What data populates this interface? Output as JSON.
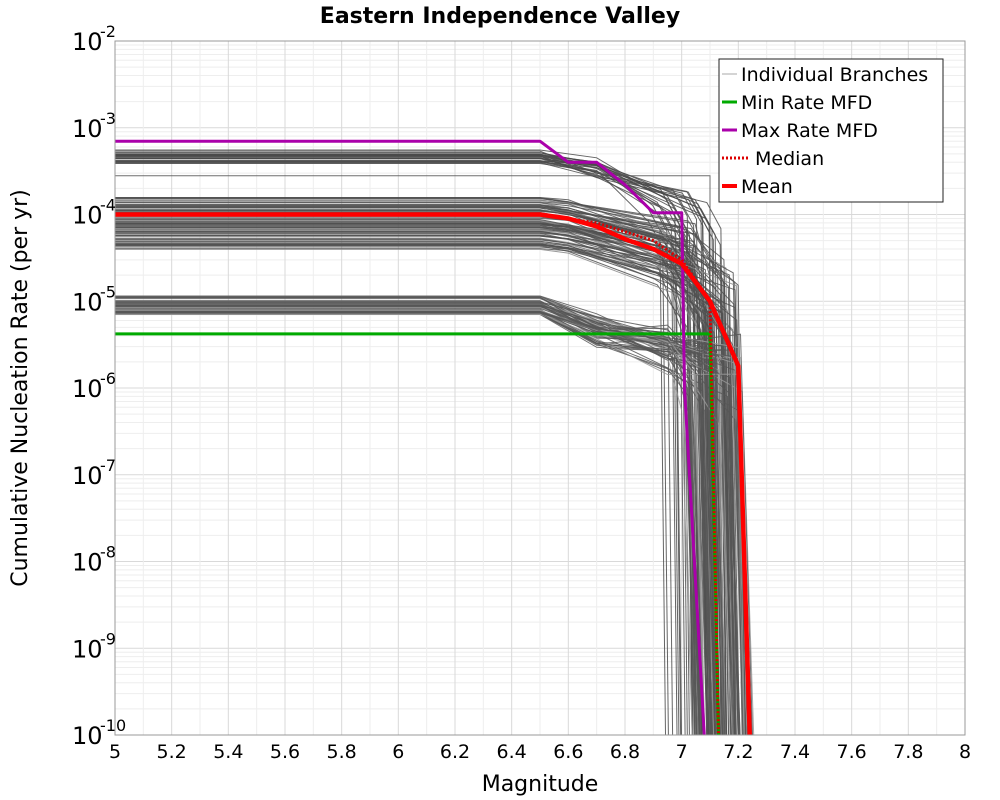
{
  "chart_data": {
    "type": "line",
    "title": "Eastern Independence Valley",
    "xlabel": "Magnitude",
    "ylabel": "Cumulative Nucleation Rate (per yr)",
    "xlim": [
      5,
      8
    ],
    "ylim": [
      1e-10,
      0.01
    ],
    "y_scale": "log",
    "grid": true,
    "legend_position": "top-right",
    "x_ticks": [
      "5",
      "5.2",
      "5.4",
      "5.6",
      "5.8",
      "6",
      "6.2",
      "6.4",
      "6.6",
      "6.8",
      "7",
      "7.2",
      "7.4",
      "7.6",
      "7.8",
      "8"
    ],
    "y_ticks": [
      {
        "base": "10",
        "exp": "-2"
      },
      {
        "base": "10",
        "exp": "-3"
      },
      {
        "base": "10",
        "exp": "-4"
      },
      {
        "base": "10",
        "exp": "-5"
      },
      {
        "base": "10",
        "exp": "-6"
      },
      {
        "base": "10",
        "exp": "-7"
      },
      {
        "base": "10",
        "exp": "-8"
      },
      {
        "base": "10",
        "exp": "-9"
      },
      {
        "base": "10",
        "exp": "-10"
      }
    ],
    "series": [
      {
        "name": "Individual Branches",
        "color": "#555555",
        "style": "thin",
        "note_groups": [
          {
            "level_range": [
              0.00035,
              0.00055
            ],
            "plateau_to": 6.5
          },
          {
            "level_range": [
              4e-05,
              0.00016
            ],
            "plateau_to": 6.5
          },
          {
            "level_range": [
              7e-06,
              1.2e-05
            ],
            "plateau_to": 6.5
          }
        ]
      },
      {
        "name": "Min Rate MFD",
        "color": "#00aa00",
        "x": [
          5.0,
          6.5,
          7.0,
          7.1,
          7.13
        ],
        "y": [
          4.2e-06,
          4.2e-06,
          4.2e-06,
          4.2e-06,
          1e-10
        ]
      },
      {
        "name": "Max Rate MFD",
        "color": "#aa00aa",
        "x": [
          5.0,
          6.5,
          6.6,
          6.7,
          6.8,
          6.9,
          7.0,
          7.01,
          7.08
        ],
        "y": [
          0.0007,
          0.0007,
          0.0004,
          0.0004,
          0.00022,
          0.000105,
          0.000105,
          1e-06,
          1e-10
        ]
      },
      {
        "name": "Median",
        "color": "#dd0000",
        "style": "dotted",
        "x": [
          5.0,
          6.5,
          6.7,
          6.9,
          7.0,
          7.1,
          7.13
        ],
        "y": [
          0.0001,
          0.0001,
          8e-05,
          5e-05,
          3e-05,
          1e-05,
          1e-10
        ]
      },
      {
        "name": "Mean",
        "color": "#ff0000",
        "x": [
          5.0,
          6.5,
          6.6,
          6.7,
          6.8,
          6.9,
          7.0,
          7.1,
          7.2,
          7.24
        ],
        "y": [
          0.0001,
          0.0001,
          9e-05,
          7.3e-05,
          5.2e-05,
          4e-05,
          2.7e-05,
          1e-05,
          1.8e-06,
          1e-10
        ]
      }
    ]
  }
}
